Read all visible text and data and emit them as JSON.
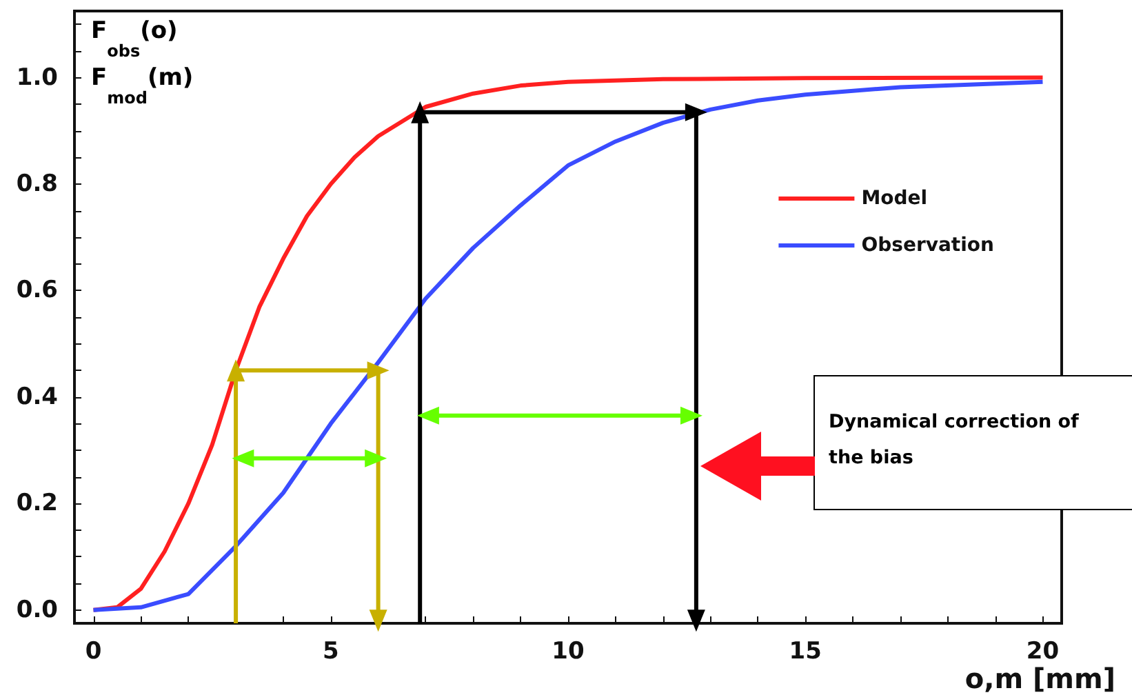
{
  "chart_data": {
    "type": "line",
    "xlabel": "o,m [mm]",
    "ylabel": "F$_{obs}$(o)\nF$_{mod}$(m)",
    "annotations": [
      "Dynamical correction of the bias"
    ],
    "xlim": [
      -0.4,
      20.4
    ],
    "ylim": [
      -0.025,
      1.125
    ],
    "xticks": [
      0,
      {
        "value": 1,
        "label": null
      },
      {
        "value": 2,
        "label": null
      },
      {
        "value": 3,
        "label": null
      },
      {
        "value": 4,
        "label": null
      },
      5,
      {
        "value": 6,
        "label": null
      },
      {
        "value": 7,
        "label": null
      },
      {
        "value": 8,
        "label": null
      },
      {
        "value": 9,
        "label": null
      },
      10,
      {
        "value": 11,
        "label": null
      },
      {
        "value": 12,
        "label": null
      },
      {
        "value": 13,
        "label": null
      },
      {
        "value": 14,
        "label": null
      },
      15,
      {
        "value": 16,
        "label": null
      },
      {
        "value": 17,
        "label": null
      },
      {
        "value": 18,
        "label": null
      },
      {
        "value": 19,
        "label": null
      },
      20
    ],
    "yticks": [
      {
        "value": 0,
        "label": "0.0"
      },
      {
        "value": 0.05,
        "label": null
      },
      {
        "value": 0.1,
        "label": null
      },
      {
        "value": 0.15,
        "label": null
      },
      {
        "value": 0.2,
        "label": "0.2"
      },
      {
        "value": 0.25,
        "label": null
      },
      {
        "value": 0.3,
        "label": null
      },
      {
        "value": 0.35,
        "label": null
      },
      {
        "value": 0.4,
        "label": "0.4"
      },
      {
        "value": 0.45,
        "label": null
      },
      {
        "value": 0.5,
        "label": null
      },
      {
        "value": 0.55,
        "label": null
      },
      {
        "value": 0.6,
        "label": "0.6"
      },
      {
        "value": 0.65,
        "label": null
      },
      {
        "value": 0.7,
        "label": null
      },
      {
        "value": 0.75,
        "label": null
      },
      {
        "value": 0.8,
        "label": "0.8"
      },
      {
        "value": 0.85,
        "label": null
      },
      {
        "value": 0.9,
        "label": null
      },
      {
        "value": 0.95,
        "label": null
      },
      {
        "value": 1.0,
        "label": "1.0"
      },
      {
        "value": 1.05,
        "label": null
      },
      {
        "value": 1.1,
        "label": null
      }
    ],
    "grid": false,
    "legend": "right",
    "marker": "none",
    "line_style": "solid",
    "series": [
      {
        "name": "Model",
        "color": "#ff2020",
        "x": [
          0,
          0.5,
          1,
          1.5,
          2,
          2.5,
          3,
          3.5,
          4,
          4.5,
          5,
          5.5,
          6,
          7,
          8,
          9,
          10,
          12,
          15,
          20
        ],
        "values": [
          0,
          0.005,
          0.04,
          0.11,
          0.2,
          0.31,
          0.45,
          0.57,
          0.66,
          0.74,
          0.8,
          0.85,
          0.89,
          0.945,
          0.97,
          0.985,
          0.992,
          0.997,
          0.999,
          1.0
        ]
      },
      {
        "name": "Observation",
        "color": "#3a4cff",
        "x": [
          0,
          1,
          2,
          3,
          4,
          5,
          6,
          7,
          8,
          9,
          10,
          11,
          12,
          13,
          14,
          15,
          17,
          20
        ],
        "values": [
          0,
          0.005,
          0.03,
          0.12,
          0.22,
          0.35,
          0.465,
          0.585,
          0.68,
          0.76,
          0.835,
          0.88,
          0.915,
          0.94,
          0.957,
          0.968,
          0.982,
          0.992
        ]
      },
      {
        "color": "#c8b000",
        "marker": "triangle",
        "x": [
          3,
          3,
          6.0,
          6.0
        ],
        "values": [
          -0.025,
          0.45,
          0.45,
          -0.02
        ]
      },
      {
        "color": "#66ff00",
        "marker": "triangle",
        "x": [
          3.15,
          5.95
        ],
        "values": [
          0.285,
          0.285
        ]
      },
      {
        "color": "#66ff00",
        "marker": "triangle",
        "x": [
          7.05,
          12.6
        ],
        "values": [
          0.365,
          0.365
        ]
      },
      {
        "color": "#000000",
        "marker": "triangle",
        "x": [
          6.88,
          6.88,
          12.7,
          12.7
        ],
        "values": [
          -0.025,
          0.935,
          0.935,
          -0.02
        ]
      }
    ]
  }
}
